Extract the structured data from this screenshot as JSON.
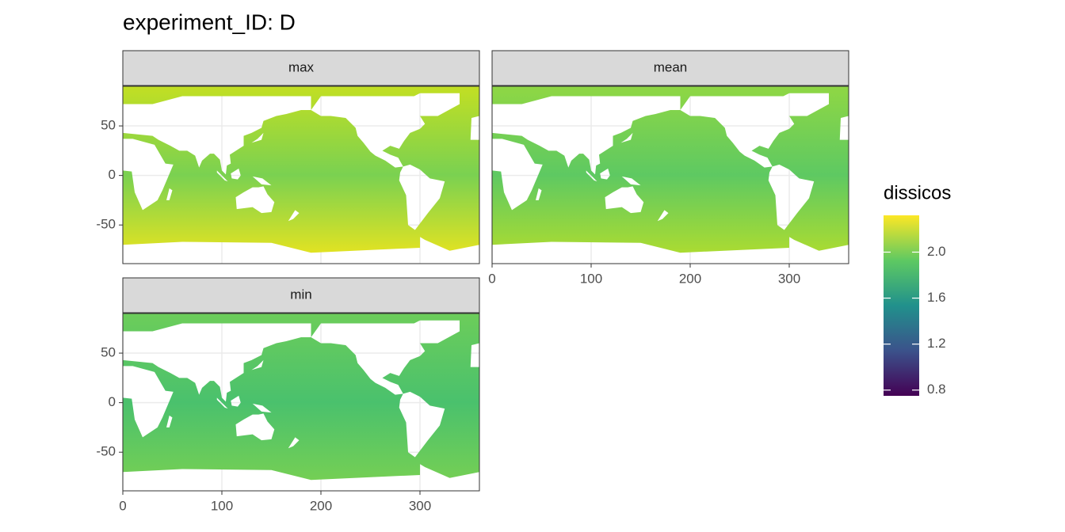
{
  "chart_data": {
    "type": "heatmap",
    "title": "experiment_ID: D",
    "facets": [
      "max",
      "mean",
      "min"
    ],
    "xlim": [
      0,
      360
    ],
    "xticks": [
      0,
      100,
      200,
      300
    ],
    "ylim": [
      -89,
      90
    ],
    "yticks": [
      -50,
      0,
      50
    ],
    "grid": true,
    "legend": {
      "title": "dissicos",
      "limits": [
        0.75,
        2.32
      ],
      "ticks": [
        0.8,
        1.2,
        1.6,
        {
          "value": 2,
          "label": "2.0"
        }
      ]
    }
  }
}
